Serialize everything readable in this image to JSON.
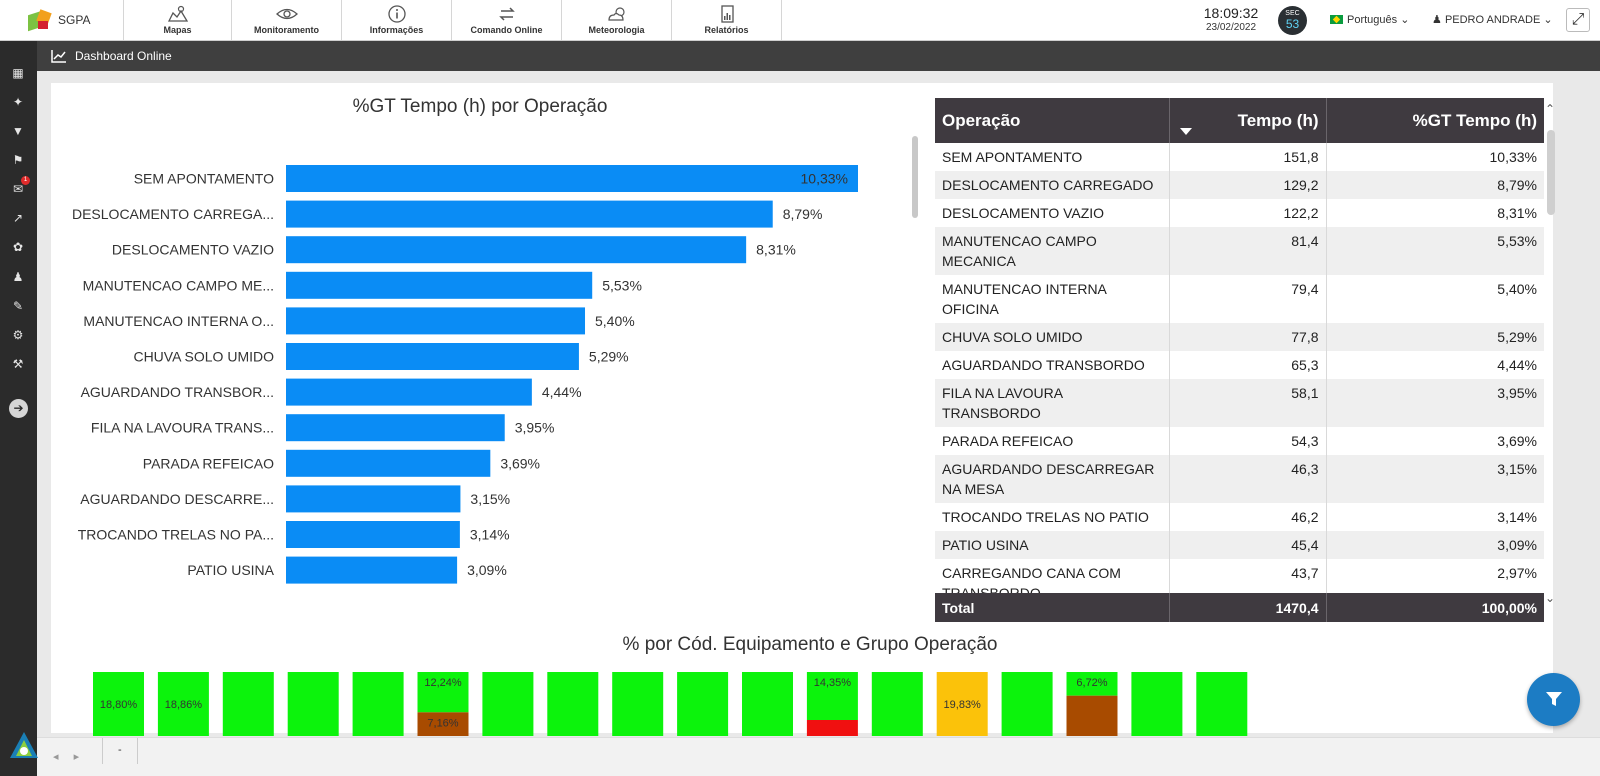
{
  "app": {
    "name": "SGPA"
  },
  "nav": [
    {
      "label": "Mapas",
      "icon": "map-icon"
    },
    {
      "label": "Monitoramento",
      "icon": "eye-icon"
    },
    {
      "label": "Informações",
      "icon": "info-icon"
    },
    {
      "label": "Comando Online",
      "icon": "swap-icon"
    },
    {
      "label": "Meteorologia",
      "icon": "weather-icon"
    },
    {
      "label": "Relatórios",
      "icon": "report-icon"
    }
  ],
  "header": {
    "time": "18:09:32",
    "date": "23/02/2022",
    "sec_label": "SEC",
    "sec_value": "53",
    "language": "Português ⌄",
    "user": "PEDRO ANDRADE ⌄",
    "expand_icon": "⤢"
  },
  "breadcrumb": {
    "title": "Dashboard Online"
  },
  "sidebar": {
    "badge": "1",
    "arrow": "➔"
  },
  "chart_data": [
    {
      "type": "bar",
      "orientation": "horizontal",
      "title": "%GT Tempo (h) por Operação",
      "categories": [
        "SEM APONTAMENTO",
        "DESLOCAMENTO CARREGA...",
        "DESLOCAMENTO VAZIO",
        "MANUTENCAO CAMPO ME...",
        "MANUTENCAO INTERNA O...",
        "CHUVA SOLO UMIDO",
        "AGUARDANDO TRANSBOR...",
        "FILA NA LAVOURA TRANS...",
        "PARADA REFEICAO",
        "AGUARDANDO DESCARRE...",
        "TROCANDO TRELAS NO PA...",
        "PATIO USINA"
      ],
      "values": [
        10.33,
        8.79,
        8.31,
        5.53,
        5.4,
        5.29,
        4.44,
        3.95,
        3.69,
        3.15,
        3.14,
        3.09
      ],
      "labels": [
        "10,33%",
        "8,79%",
        "8,31%",
        "5,53%",
        "5,40%",
        "5,29%",
        "4,44%",
        "3,95%",
        "3,69%",
        "3,15%",
        "3,14%",
        "3,09%"
      ],
      "xlim": [
        0,
        10.33
      ],
      "color": "#0a8cf5"
    },
    {
      "type": "bar",
      "stacked": true,
      "title": "% por Cód. Equipamento e Grupo Operação",
      "columns": [
        {
          "segments": [
            {
              "value": 100,
              "color": "#0cf30c",
              "label": "18,80%"
            }
          ]
        },
        {
          "segments": [
            {
              "value": 100,
              "color": "#0cf30c",
              "label": "18,86%"
            }
          ]
        },
        {
          "segments": [
            {
              "value": 100,
              "color": "#0cf30c",
              "label": ""
            }
          ]
        },
        {
          "segments": [
            {
              "value": 100,
              "color": "#0cf30c",
              "label": ""
            }
          ]
        },
        {
          "segments": [
            {
              "value": 100,
              "color": "#0cf30c",
              "label": ""
            }
          ]
        },
        {
          "segments": [
            {
              "value": 63,
              "color": "#0cf30c",
              "label": "12,24%"
            },
            {
              "value": 37,
              "color": "#a84b00",
              "label": "7,16%"
            }
          ]
        },
        {
          "segments": [
            {
              "value": 100,
              "color": "#0cf30c",
              "label": ""
            }
          ]
        },
        {
          "segments": [
            {
              "value": 100,
              "color": "#0cf30c",
              "label": ""
            }
          ]
        },
        {
          "segments": [
            {
              "value": 100,
              "color": "#0cf30c",
              "label": ""
            }
          ]
        },
        {
          "segments": [
            {
              "value": 100,
              "color": "#0cf30c",
              "label": ""
            }
          ]
        },
        {
          "segments": [
            {
              "value": 100,
              "color": "#0cf30c",
              "label": ""
            }
          ]
        },
        {
          "segments": [
            {
              "value": 75,
              "color": "#0cf30c",
              "label": "14,35%"
            },
            {
              "value": 25,
              "color": "#f01010",
              "label": ""
            }
          ]
        },
        {
          "segments": [
            {
              "value": 100,
              "color": "#0cf30c",
              "label": ""
            }
          ]
        },
        {
          "segments": [
            {
              "value": 100,
              "color": "#fbc20a",
              "label": "19,83%"
            }
          ]
        },
        {
          "segments": [
            {
              "value": 100,
              "color": "#0cf30c",
              "label": ""
            }
          ]
        },
        {
          "segments": [
            {
              "value": 37,
              "color": "#0cf30c",
              "label": "6,72%"
            },
            {
              "value": 63,
              "color": "#a84b00",
              "label": ""
            }
          ]
        },
        {
          "segments": [
            {
              "value": 100,
              "color": "#0cf30c",
              "label": ""
            }
          ]
        },
        {
          "segments": [
            {
              "value": 100,
              "color": "#0cf30c",
              "label": ""
            }
          ]
        }
      ]
    }
  ],
  "table": {
    "headers": [
      "Operação",
      "Tempo (h)",
      "%GT Tempo (h)"
    ],
    "rows": [
      [
        "SEM APONTAMENTO",
        "151,8",
        "10,33%"
      ],
      [
        "DESLOCAMENTO CARREGADO",
        "129,2",
        "8,79%"
      ],
      [
        "DESLOCAMENTO VAZIO",
        "122,2",
        "8,31%"
      ],
      [
        "MANUTENCAO CAMPO MECANICA",
        "81,4",
        "5,53%"
      ],
      [
        "MANUTENCAO INTERNA OFICINA",
        "79,4",
        "5,40%"
      ],
      [
        "CHUVA SOLO UMIDO",
        "77,8",
        "5,29%"
      ],
      [
        "AGUARDANDO TRANSBORDO",
        "65,3",
        "4,44%"
      ],
      [
        "FILA NA LAVOURA TRANSBORDO",
        "58,1",
        "3,95%"
      ],
      [
        "PARADA REFEICAO",
        "54,3",
        "3,69%"
      ],
      [
        "AGUARDANDO DESCARREGAR NA MESA",
        "46,3",
        "3,15%"
      ],
      [
        "TROCANDO TRELAS NO PATIO",
        "46,2",
        "3,14%"
      ],
      [
        "PATIO USINA",
        "45,4",
        "3,09%"
      ],
      [
        "CARREGANDO CANA COM TRANSBORDO",
        "43,7",
        "2,97%"
      ]
    ],
    "total": [
      "Total",
      "1470,4",
      "100,00%"
    ]
  },
  "footer": {
    "nav": "◂ ▸",
    "page": "-"
  }
}
